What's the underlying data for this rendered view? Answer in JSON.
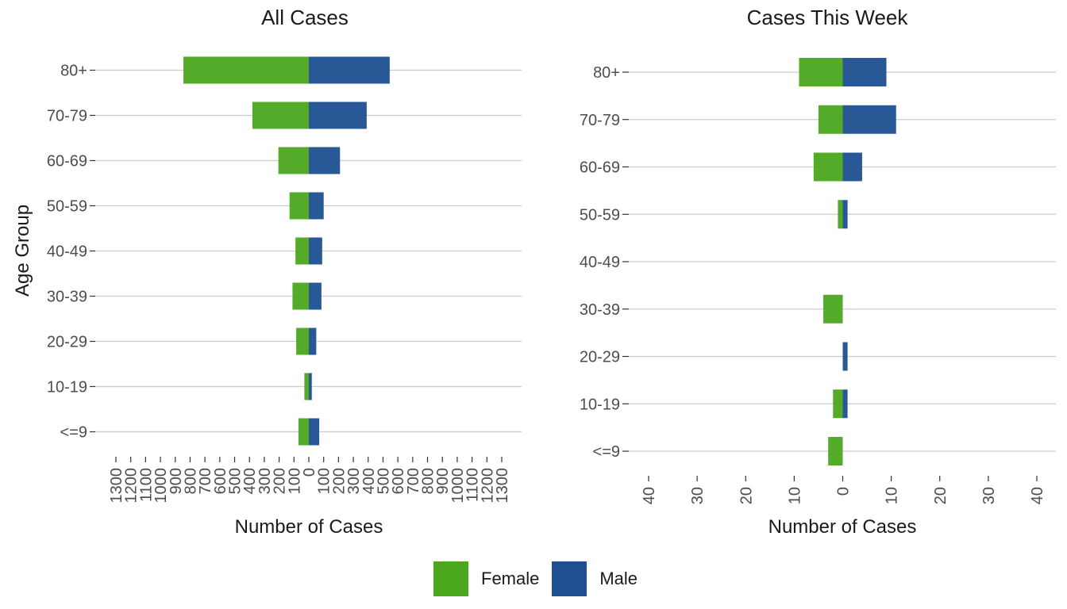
{
  "chart_data": [
    {
      "type": "bar",
      "orientation": "horizontal-diverging",
      "title": "All Cases",
      "xlabel": "Number of Cases",
      "ylabel": "Age Group",
      "categories": [
        "<=9",
        "10-19",
        "20-29",
        "30-39",
        "40-49",
        "50-59",
        "60-69",
        "70-79",
        "80+"
      ],
      "series": [
        {
          "name": "Female",
          "side": "left",
          "values": [
            70,
            30,
            85,
            110,
            90,
            130,
            205,
            380,
            845
          ]
        },
        {
          "name": "Male",
          "side": "right",
          "values": [
            70,
            20,
            50,
            85,
            90,
            100,
            210,
            390,
            545
          ]
        }
      ],
      "xlim": [
        -1300,
        1300
      ],
      "xticks": [
        -1300,
        -1200,
        -1100,
        -1000,
        -900,
        -800,
        -700,
        -600,
        -500,
        -400,
        -300,
        -200,
        -100,
        0,
        100,
        200,
        300,
        400,
        500,
        600,
        700,
        800,
        900,
        1000,
        1100,
        1200,
        1300
      ],
      "xtick_labels": [
        "1300",
        "1200",
        "1100",
        "1000",
        "900",
        "800",
        "700",
        "600",
        "500",
        "400",
        "300",
        "200",
        "100",
        "0",
        "100",
        "200",
        "300",
        "400",
        "500",
        "600",
        "700",
        "800",
        "900",
        "1000",
        "1100",
        "1200",
        "1300"
      ],
      "grid": "horizontal"
    },
    {
      "type": "bar",
      "orientation": "horizontal-diverging",
      "title": "Cases This Week",
      "xlabel": "Number of Cases",
      "ylabel": "",
      "categories": [
        "<=9",
        "10-19",
        "20-29",
        "30-39",
        "40-49",
        "50-59",
        "60-69",
        "70-79",
        "80+"
      ],
      "series": [
        {
          "name": "Female",
          "side": "left",
          "values": [
            3,
            2,
            0,
            4,
            0,
            1,
            6,
            5,
            9
          ]
        },
        {
          "name": "Male",
          "side": "right",
          "values": [
            0,
            1,
            1,
            0,
            0,
            1,
            4,
            11,
            9
          ]
        }
      ],
      "xlim": [
        -40,
        40
      ],
      "xticks": [
        -40,
        -30,
        -20,
        -10,
        0,
        10,
        20,
        30,
        40
      ],
      "xtick_labels": [
        "40",
        "30",
        "20",
        "10",
        "0",
        "10",
        "20",
        "30",
        "40"
      ],
      "grid": "horizontal"
    }
  ],
  "legend": {
    "items": [
      {
        "label": "Female",
        "color": "#4aa71e"
      },
      {
        "label": "Male",
        "color": "#1d4f91"
      }
    ]
  },
  "colors": {
    "female": "#4aa71e",
    "male": "#1d4f91",
    "grid": "#cccccc",
    "tick_text": "#4d4d4d",
    "title_text": "#1a1a1a"
  }
}
